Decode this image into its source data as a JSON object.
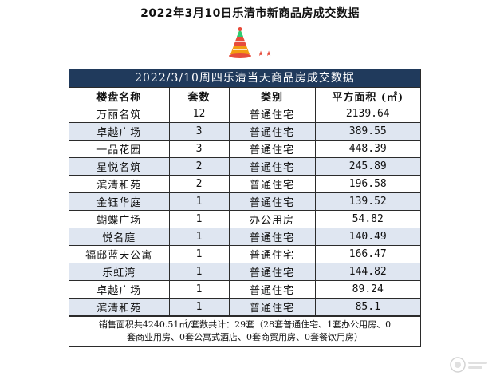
{
  "page": {
    "title": "2022年3月10日乐清市新商品房成交数据"
  },
  "sheet": {
    "heading": "2022/3/10周四乐清当天商品房成交数据",
    "columns": [
      "楼盘名称",
      "套数",
      "类别",
      "平方面积 (㎡)"
    ],
    "rows": [
      [
        "万丽名筑",
        "12",
        "普通住宅",
        "2139.64"
      ],
      [
        "卓越广场",
        "3",
        "普通住宅",
        "389.55"
      ],
      [
        "一品花园",
        "3",
        "普通住宅",
        "448.39"
      ],
      [
        "星悦名筑",
        "2",
        "普通住宅",
        "245.89"
      ],
      [
        "滨清和苑",
        "2",
        "普通住宅",
        "196.58"
      ],
      [
        "金钰华庭",
        "1",
        "普通住宅",
        "139.52"
      ],
      [
        "蝴蝶广场",
        "1",
        "办公用房",
        "54.82"
      ],
      [
        "悦名庭",
        "1",
        "普通住宅",
        "140.49"
      ],
      [
        "福邸蓝天公寓",
        "1",
        "普通住宅",
        "166.47"
      ],
      [
        "乐虹湾",
        "1",
        "普通住宅",
        "144.82"
      ],
      [
        "卓越广场",
        "1",
        "普通住宅",
        "89.24"
      ],
      [
        "滨清和苑",
        "1",
        "普通住宅",
        "85.1"
      ]
    ],
    "summary_line1": "销售面积共4240.51㎡/套数共计：29套（28套普通住宅、1套办公用房、0",
    "summary_line2": "套商业用房、0套公寓式酒店、0套商贸用房、0套餐饮用房）"
  },
  "decoration": {
    "icon": "party-hat-icon",
    "hat_colors": [
      "#e74c3c",
      "#f39c12",
      "#2ecc71"
    ],
    "star_color": "#e74c3c"
  },
  "colors": {
    "header_bg": "#203a5c",
    "stripe": "#dfe6f1"
  }
}
